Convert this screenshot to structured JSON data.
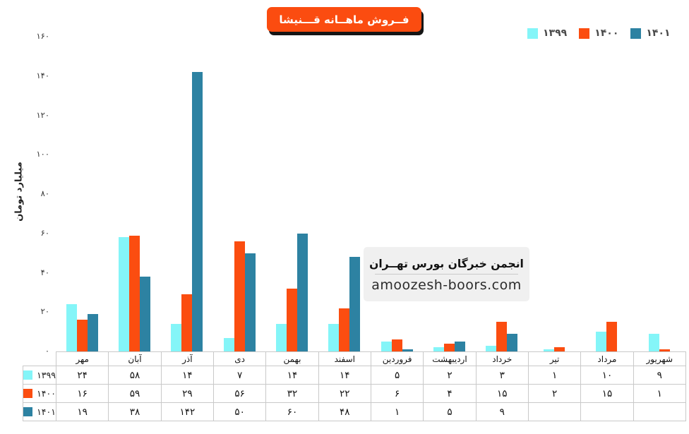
{
  "title": "فــروش ماهــانه قـــنیشا",
  "y_axis_title": "میلیارد تومان",
  "watermark": {
    "line1": "انجمن خبرگان بورس تهــران",
    "line2": "amoozesh-boors.com"
  },
  "colors": {
    "series_1399": "#84f5f8",
    "series_1400": "#fb4d10",
    "series_1401": "#2d82a2",
    "badge_background": "#fb4c10",
    "badge_shadow": "#151515",
    "table_border": "#c9c9c9"
  },
  "chart_data": {
    "type": "bar",
    "title": "فــروش ماهــانه قـــنیشا",
    "xlabel": "",
    "ylabel": "میلیارد تومان",
    "ylim": [
      0,
      160
    ],
    "yticks": [
      0,
      20,
      40,
      60,
      80,
      100,
      120,
      140,
      160
    ],
    "grid": false,
    "legend_position": "top-right",
    "categories": [
      "مهر",
      "آبان",
      "آذر",
      "دی",
      "بهمن",
      "اسفند",
      "فروردین",
      "اردیبهشت",
      "خرداد",
      "تیر",
      "مرداد",
      "شهریور"
    ],
    "series": [
      {
        "name": "۱۳۹۹",
        "color": "#84f5f8",
        "values": [
          24,
          58,
          14,
          7,
          14,
          14,
          5,
          2,
          3,
          1,
          10,
          9
        ]
      },
      {
        "name": "۱۴۰۰",
        "color": "#fb4d10",
        "values": [
          16,
          59,
          29,
          56,
          32,
          22,
          6,
          4,
          15,
          2,
          15,
          1
        ]
      },
      {
        "name": "۱۴۰۱",
        "color": "#2d82a2",
        "values": [
          19,
          38,
          142,
          50,
          60,
          48,
          1,
          5,
          9,
          null,
          null,
          null
        ]
      }
    ]
  }
}
